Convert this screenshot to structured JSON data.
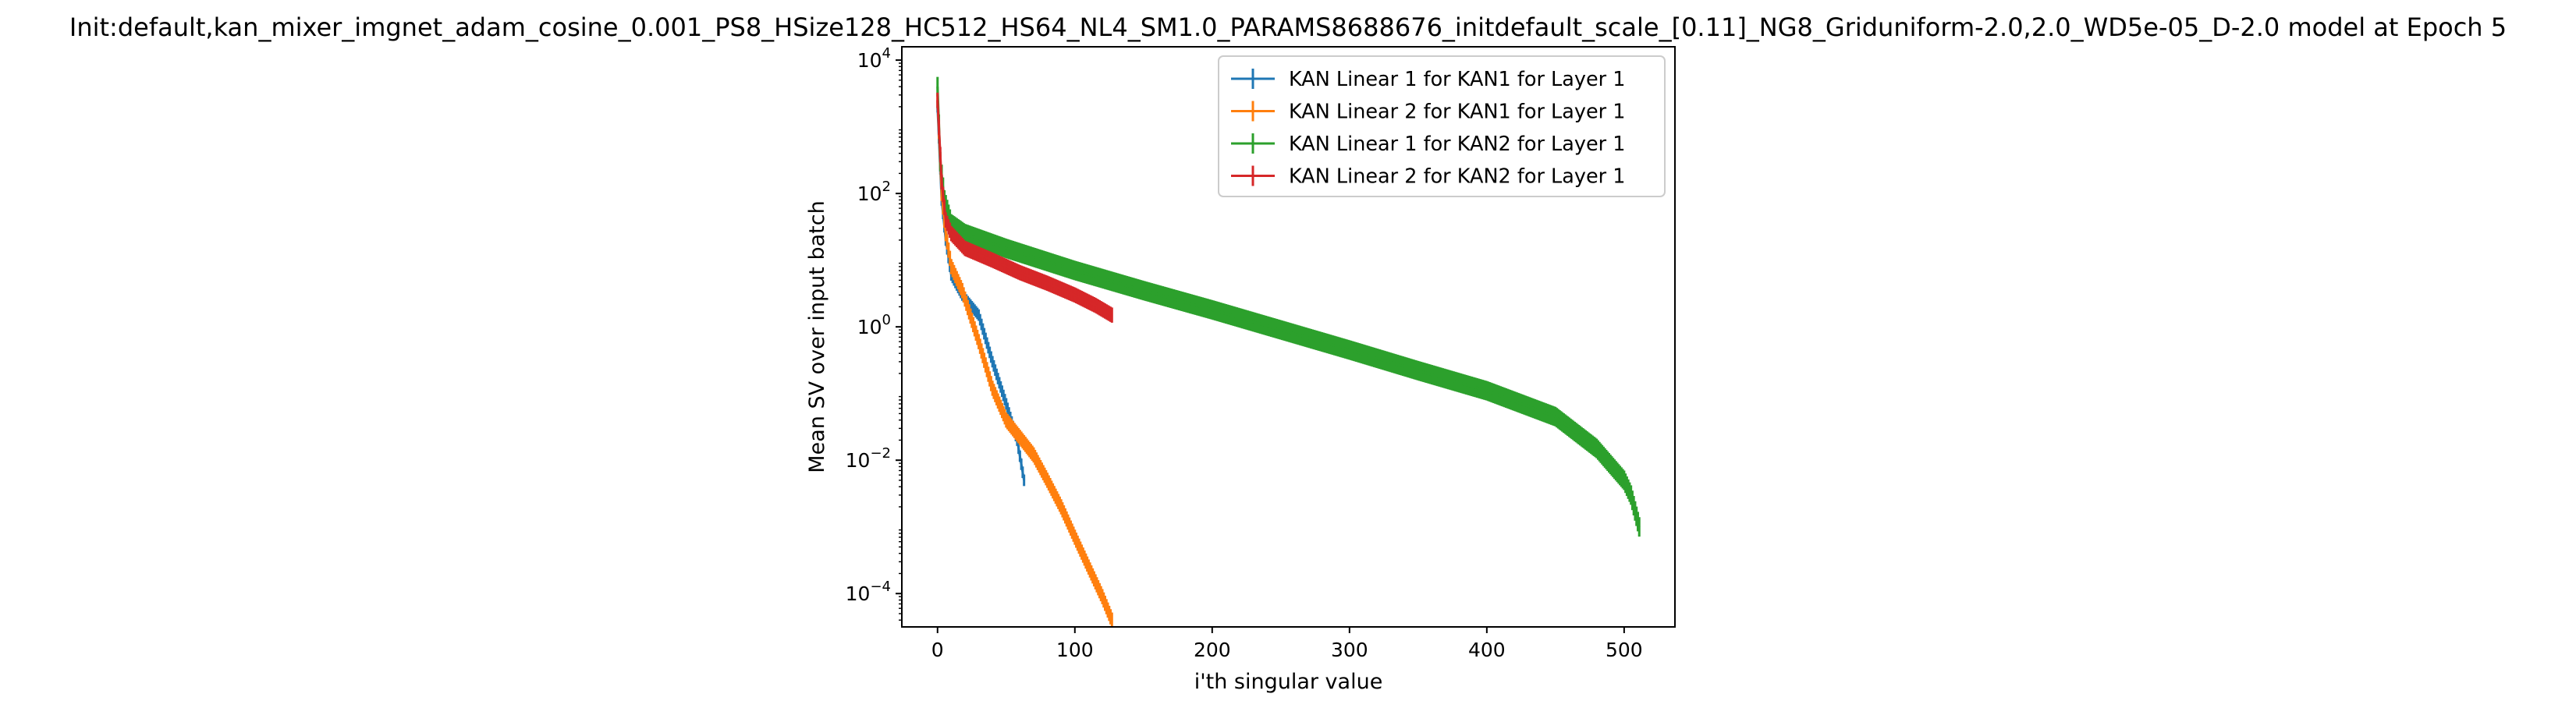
{
  "chart_data": {
    "type": "line",
    "title": "Init:default,kan_mixer_imgnet_adam_cosine_0.001_PS8_HSize128_HC512_HS64_NL4_SM1.0_PARAMS8688676_initdefault_scale_[0.11]_NG8_Griduniform-2.0,2.0_WD5e-05_D-2.0 model at Epoch 5",
    "xlabel": "i'th singular value",
    "ylabel": "Mean SV over input batch",
    "xlim": [
      -26,
      537
    ],
    "ylim_log10": [
      -4.5,
      4.2
    ],
    "yscale": "log",
    "grid": false,
    "legend_position": "upper right",
    "error_bars": true,
    "x_ticks": [
      {
        "value": 0,
        "label": "0"
      },
      {
        "value": 100,
        "label": "100"
      },
      {
        "value": 200,
        "label": "200"
      },
      {
        "value": 300,
        "label": "300"
      },
      {
        "value": 400,
        "label": "400"
      },
      {
        "value": 500,
        "label": "500"
      }
    ],
    "y_ticks": [
      {
        "exp": 4,
        "label": "10",
        "sup": "4"
      },
      {
        "exp": 2,
        "label": "10",
        "sup": "2"
      },
      {
        "exp": 0,
        "label": "10",
        "sup": "0"
      },
      {
        "exp": -2,
        "label": "10",
        "sup": "−2"
      },
      {
        "exp": -4,
        "label": "10",
        "sup": "−4"
      }
    ],
    "series": [
      {
        "name": "KAN Linear 1 for KAN1 for Layer 1",
        "color": "#1f77b4",
        "n": 64,
        "anchors": [
          [
            0,
            2000
          ],
          [
            3,
            80
          ],
          [
            6,
            20
          ],
          [
            10,
            6
          ],
          [
            18,
            3
          ],
          [
            30,
            1.5
          ],
          [
            40,
            0.3
          ],
          [
            50,
            0.07
          ],
          [
            58,
            0.02
          ],
          [
            63,
            0.005
          ]
        ],
        "err_frac": 0.22
      },
      {
        "name": "KAN Linear 2 for KAN1 for Layer 1",
        "color": "#ff7f0e",
        "n": 128,
        "anchors": [
          [
            0,
            2500
          ],
          [
            3,
            100
          ],
          [
            6,
            25
          ],
          [
            10,
            8
          ],
          [
            18,
            3.5
          ],
          [
            30,
            0.6
          ],
          [
            40,
            0.12
          ],
          [
            50,
            0.04
          ],
          [
            60,
            0.022
          ],
          [
            70,
            0.012
          ],
          [
            80,
            0.005
          ],
          [
            90,
            0.002
          ],
          [
            100,
            0.0007
          ],
          [
            110,
            0.00025
          ],
          [
            120,
            9e-05
          ],
          [
            127,
            4e-05
          ]
        ],
        "err_frac": 0.3
      },
      {
        "name": "KAN Linear 1 for KAN2 for Layer 1",
        "color": "#2ca02c",
        "n": 512,
        "anchors": [
          [
            0,
            4000
          ],
          [
            2,
            300
          ],
          [
            5,
            80
          ],
          [
            10,
            35
          ],
          [
            20,
            25
          ],
          [
            50,
            15
          ],
          [
            100,
            7
          ],
          [
            150,
            3.5
          ],
          [
            200,
            1.8
          ],
          [
            250,
            0.9
          ],
          [
            300,
            0.45
          ],
          [
            350,
            0.22
          ],
          [
            400,
            0.11
          ],
          [
            450,
            0.045
          ],
          [
            480,
            0.015
          ],
          [
            500,
            0.005
          ],
          [
            505,
            0.003
          ],
          [
            511,
            0.001
          ]
        ],
        "err_frac": 0.4
      },
      {
        "name": "KAN Linear 2 for KAN2 for Layer 1",
        "color": "#d62728",
        "n": 128,
        "anchors": [
          [
            0,
            2500
          ],
          [
            3,
            150
          ],
          [
            6,
            40
          ],
          [
            10,
            25
          ],
          [
            20,
            15
          ],
          [
            40,
            10
          ],
          [
            60,
            6.5
          ],
          [
            80,
            4.5
          ],
          [
            100,
            3
          ],
          [
            115,
            2.1
          ],
          [
            127,
            1.5
          ]
        ],
        "err_frac": 0.3
      }
    ]
  }
}
